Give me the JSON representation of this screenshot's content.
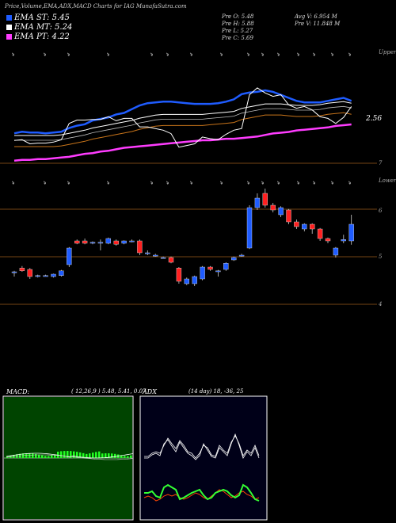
{
  "header": {
    "title": "Price,Volume,EMA,ADX,MACD Charts for IAG MunafaSutra.com"
  },
  "legend": [
    {
      "label": "EMA ST: 5.45",
      "color": "#1f5cff"
    },
    {
      "label": "EMA MT: 5.24",
      "color": "#ffffff"
    },
    {
      "label": "EMA PT: 4.22",
      "color": "#ff3cff"
    }
  ],
  "stats": {
    "prev_open": "Pre O: 5.48",
    "prev_high": "Pre H: 5.88",
    "prev_low": "Pre L: 5.27",
    "prev_close": "Pre C: 5.69",
    "avg_vol": "Avg V: 6.954 M",
    "prev_vol": "Pre V: 11.848 M"
  },
  "labels": {
    "upper": "Upper",
    "lower": "Lower",
    "ema_value": "2.56",
    "candle_right": "6",
    "axis_7": "7",
    "axis_5": "5",
    "axis_4": "4"
  },
  "macd": {
    "title": "MACD:",
    "params": "( 12,26,9 ) 5.48, 5.41, 0.07"
  },
  "adx": {
    "title": "ADX",
    "params": "(14 day) 18, -36, 25"
  },
  "chart_data": {
    "type": "candlestick",
    "title": "Price,Volume,EMA,ADX,MACD Charts for IAG MunafaSutra.com",
    "candles": [
      {
        "o": 4.7,
        "c": 4.7,
        "h": 4.72,
        "l": 4.6
      },
      {
        "o": 4.78,
        "c": 4.72,
        "h": 4.82,
        "l": 4.7
      },
      {
        "o": 4.75,
        "c": 4.6,
        "h": 4.78,
        "l": 4.55
      },
      {
        "o": 4.62,
        "c": 4.62,
        "h": 4.64,
        "l": 4.58
      },
      {
        "o": 4.62,
        "c": 4.62,
        "h": 4.64,
        "l": 4.6
      },
      {
        "o": 4.6,
        "c": 4.65,
        "h": 4.66,
        "l": 4.58
      },
      {
        "o": 4.62,
        "c": 4.72,
        "h": 4.74,
        "l": 4.6
      },
      {
        "o": 4.85,
        "c": 5.2,
        "h": 5.22,
        "l": 4.8
      },
      {
        "o": 5.35,
        "c": 5.3,
        "h": 5.38,
        "l": 5.28
      },
      {
        "o": 5.35,
        "c": 5.3,
        "h": 5.4,
        "l": 5.28
      },
      {
        "o": 5.3,
        "c": 5.32,
        "h": 5.34,
        "l": 5.28
      },
      {
        "o": 5.3,
        "c": 5.32,
        "h": 5.38,
        "l": 5.15
      },
      {
        "o": 5.3,
        "c": 5.4,
        "h": 5.42,
        "l": 5.28
      },
      {
        "o": 5.35,
        "c": 5.28,
        "h": 5.38,
        "l": 5.25
      },
      {
        "o": 5.3,
        "c": 5.35,
        "h": 5.36,
        "l": 5.28
      },
      {
        "o": 5.35,
        "c": 5.35,
        "h": 5.38,
        "l": 5.32
      },
      {
        "o": 5.35,
        "c": 5.1,
        "h": 5.38,
        "l": 5.05
      },
      {
        "o": 5.1,
        "c": 5.1,
        "h": 5.15,
        "l": 5.05
      },
      {
        "o": 5.05,
        "c": 5.05,
        "h": 5.08,
        "l": 5.02
      },
      {
        "o": 5.0,
        "c": 5.0,
        "h": 5.02,
        "l": 4.98
      },
      {
        "o": 5.0,
        "c": 4.9,
        "h": 5.02,
        "l": 4.88
      },
      {
        "o": 4.78,
        "c": 4.5,
        "h": 4.8,
        "l": 4.45
      },
      {
        "o": 4.45,
        "c": 4.55,
        "h": 4.58,
        "l": 4.42
      },
      {
        "o": 4.45,
        "c": 4.6,
        "h": 4.62,
        "l": 4.4
      },
      {
        "o": 4.55,
        "c": 4.8,
        "h": 4.82,
        "l": 4.52
      },
      {
        "o": 4.8,
        "c": 4.75,
        "h": 4.82,
        "l": 4.72
      },
      {
        "o": 4.7,
        "c": 4.72,
        "h": 4.74,
        "l": 4.6
      },
      {
        "o": 4.75,
        "c": 4.88,
        "h": 4.9,
        "l": 4.72
      },
      {
        "o": 4.95,
        "c": 5.0,
        "h": 5.02,
        "l": 4.93
      },
      {
        "o": 5.05,
        "c": 5.05,
        "h": 5.08,
        "l": 5.02
      },
      {
        "o": 5.2,
        "c": 6.05,
        "h": 6.1,
        "l": 5.18
      },
      {
        "o": 6.05,
        "c": 6.25,
        "h": 6.35,
        "l": 6.0
      },
      {
        "o": 6.35,
        "c": 6.1,
        "h": 6.45,
        "l": 6.05
      },
      {
        "o": 6.1,
        "c": 6.0,
        "h": 6.15,
        "l": 5.95
      },
      {
        "o": 5.9,
        "c": 6.05,
        "h": 6.08,
        "l": 5.85
      },
      {
        "o": 6.0,
        "c": 5.75,
        "h": 6.02,
        "l": 5.7
      },
      {
        "o": 5.75,
        "c": 5.65,
        "h": 5.8,
        "l": 5.6
      },
      {
        "o": 5.6,
        "c": 5.7,
        "h": 5.72,
        "l": 5.55
      },
      {
        "o": 5.7,
        "c": 5.6,
        "h": 5.72,
        "l": 5.5
      },
      {
        "o": 5.6,
        "c": 5.4,
        "h": 5.62,
        "l": 5.35
      },
      {
        "o": 5.4,
        "c": 5.35,
        "h": 5.42,
        "l": 5.3
      },
      {
        "o": 5.05,
        "c": 5.2,
        "h": 5.22,
        "l": 5.0
      },
      {
        "o": 5.35,
        "c": 5.38,
        "h": 5.48,
        "l": 5.3
      },
      {
        "o": 5.35,
        "c": 5.7,
        "h": 5.9,
        "l": 5.27
      }
    ],
    "ema": {
      "st": [
        2.23,
        2.25,
        2.24,
        2.24,
        2.23,
        2.24,
        2.25,
        2.3,
        2.33,
        2.35,
        2.4,
        2.42,
        2.44,
        2.48,
        2.5,
        2.55,
        2.6,
        2.63,
        2.64,
        2.65,
        2.65,
        2.64,
        2.63,
        2.62,
        2.62,
        2.62,
        2.63,
        2.65,
        2.68,
        2.75,
        2.77,
        2.78,
        2.8,
        2.78,
        2.74,
        2.7,
        2.66,
        2.64,
        2.64,
        2.64,
        2.66,
        2.68,
        2.7,
        2.66
      ],
      "mt": [
        2.2,
        2.2,
        2.2,
        2.2,
        2.2,
        2.2,
        2.21,
        2.23,
        2.25,
        2.27,
        2.3,
        2.32,
        2.34,
        2.36,
        2.38,
        2.4,
        2.43,
        2.45,
        2.47,
        2.48,
        2.48,
        2.48,
        2.48,
        2.48,
        2.48,
        2.49,
        2.5,
        2.51,
        2.52,
        2.56,
        2.58,
        2.6,
        2.62,
        2.62,
        2.62,
        2.61,
        2.6,
        2.6,
        2.6,
        2.61,
        2.63,
        2.64,
        2.65,
        2.63
      ],
      "pt": [
        1.93,
        1.94,
        1.94,
        1.95,
        1.95,
        1.96,
        1.97,
        1.98,
        2.0,
        2.02,
        2.03,
        2.05,
        2.06,
        2.08,
        2.1,
        2.11,
        2.12,
        2.13,
        2.14,
        2.15,
        2.16,
        2.17,
        2.18,
        2.19,
        2.2,
        2.2,
        2.21,
        2.22,
        2.22,
        2.23,
        2.24,
        2.25,
        2.27,
        2.29,
        2.3,
        2.31,
        2.33,
        2.34,
        2.35,
        2.36,
        2.37,
        2.39,
        2.4,
        2.41
      ]
    },
    "ylim": [
      4.0,
      7.0
    ]
  }
}
